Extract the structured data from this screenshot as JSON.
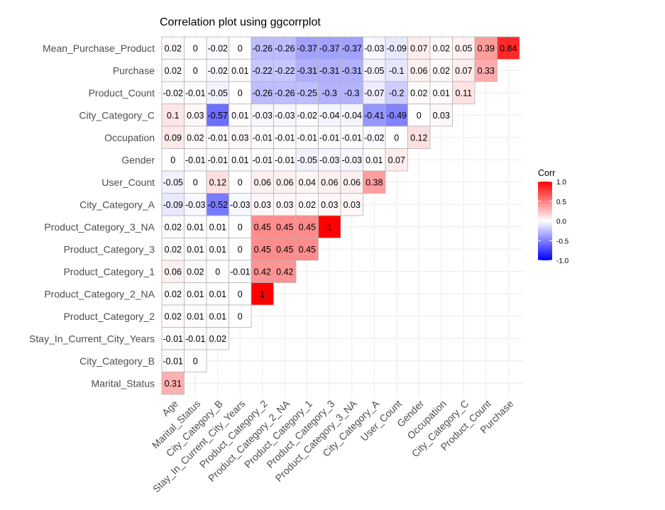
{
  "chart_data": {
    "type": "heatmap",
    "title": "Correlation plot using ggcorrplot",
    "x_labels": [
      "Age",
      "Marital_Status",
      "City_Category_B",
      "Stay_In_Current_City_Years",
      "Product_Category_2",
      "Product_Category_2_NA",
      "Product_Category_1",
      "Product_Category_3",
      "Product_Category_3_NA",
      "City_Category_A",
      "User_Count",
      "Gender",
      "Occupation",
      "City_Category_C",
      "Product_Count",
      "Purchase"
    ],
    "y_labels": [
      "Mean_Purchase_Product",
      "Purchase",
      "Product_Count",
      "City_Category_C",
      "Occupation",
      "Gender",
      "User_Count",
      "City_Category_A",
      "Product_Category_3_NA",
      "Product_Category_3",
      "Product_Category_1",
      "Product_Category_2_NA",
      "Product_Category_2",
      "Stay_In_Current_City_Years",
      "City_Category_B",
      "Marital_Status"
    ],
    "values": [
      [
        0.02,
        0,
        -0.02,
        0,
        -0.26,
        -0.26,
        -0.37,
        -0.37,
        -0.37,
        -0.03,
        -0.09,
        0.07,
        0.02,
        0.05,
        0.39,
        0.84
      ],
      [
        0.02,
        0,
        -0.02,
        0.01,
        -0.22,
        -0.22,
        -0.31,
        -0.31,
        -0.31,
        -0.05,
        -0.1,
        0.06,
        0.02,
        0.07,
        0.33
      ],
      [
        -0.02,
        -0.01,
        -0.05,
        0,
        -0.26,
        -0.26,
        -0.25,
        -0.3,
        -0.3,
        -0.07,
        -0.2,
        0.02,
        0.01,
        0.11
      ],
      [
        0.1,
        0.03,
        -0.57,
        0.01,
        -0.03,
        -0.03,
        -0.02,
        -0.04,
        -0.04,
        -0.41,
        -0.49,
        0,
        0.03
      ],
      [
        0.09,
        0.02,
        -0.01,
        0.03,
        -0.01,
        -0.01,
        -0.01,
        -0.01,
        -0.01,
        -0.02,
        0,
        0.12
      ],
      [
        0,
        -0.01,
        -0.01,
        0.01,
        -0.01,
        -0.01,
        -0.05,
        -0.03,
        -0.03,
        0.01,
        0.07
      ],
      [
        -0.05,
        0,
        0.12,
        0,
        0.06,
        0.06,
        0.04,
        0.06,
        0.06,
        0.38
      ],
      [
        -0.09,
        -0.03,
        -0.52,
        -0.03,
        0.03,
        0.03,
        0.02,
        0.03,
        0.03
      ],
      [
        0.02,
        0.01,
        0.01,
        0,
        0.45,
        0.45,
        0.45,
        1
      ],
      [
        0.02,
        0.01,
        0.01,
        0,
        0.45,
        0.45,
        0.45
      ],
      [
        0.06,
        0.02,
        0,
        -0.01,
        0.42,
        0.42
      ],
      [
        0.02,
        0.01,
        0.01,
        0,
        1
      ],
      [
        0.02,
        0.01,
        0.01,
        0
      ],
      [
        -0.01,
        -0.01,
        0.02
      ],
      [
        -0.01,
        0
      ],
      [
        0.31
      ]
    ],
    "legend": {
      "title": "Corr",
      "ticks": [
        1.0,
        0.5,
        0.0,
        -0.5,
        -1.0
      ],
      "tick_labels": [
        "1.0",
        "0.5",
        "0.0",
        "-0.5",
        "-1.0"
      ],
      "placement": "right"
    },
    "colors": {
      "low": "#0000ff",
      "mid": "#ffffff",
      "high": "#ff0000",
      "outline": "#b3b3b3",
      "grid": "#ebebeb"
    },
    "grid": true
  }
}
